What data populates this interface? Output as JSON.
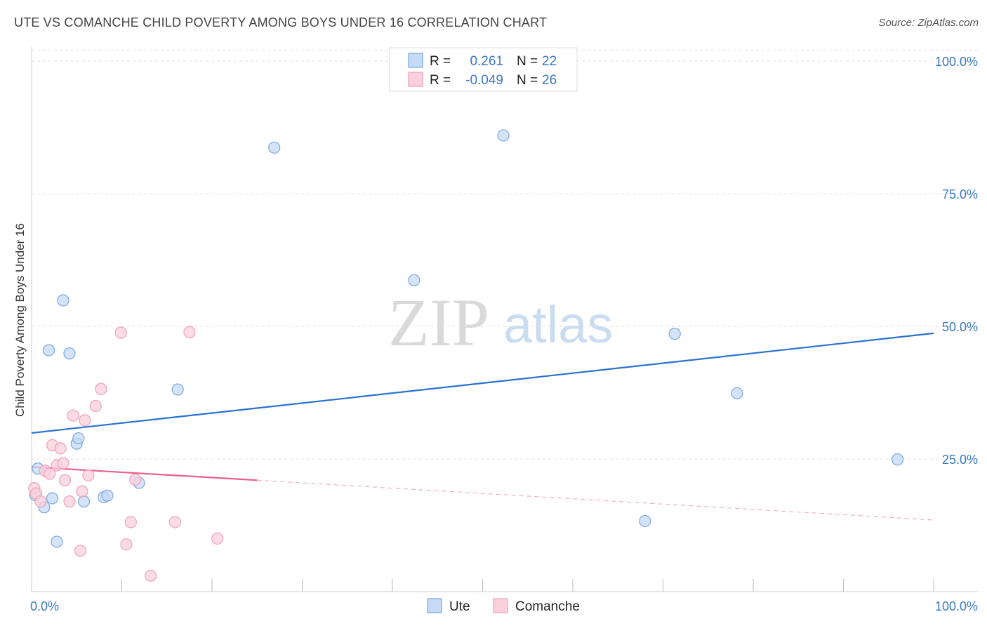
{
  "header": {
    "title": "UTE VS COMANCHE CHILD POVERTY AMONG BOYS UNDER 16 CORRELATION CHART",
    "source": "Source: ZipAtlas.com"
  },
  "watermark": {
    "zip": "ZIP",
    "atlas": "atlas"
  },
  "chart_data": {
    "type": "scatter",
    "title": "UTE VS COMANCHE CHILD POVERTY AMONG BOYS UNDER 16 CORRELATION CHART",
    "xlabel": "",
    "ylabel": "Child Poverty Among Boys Under 16",
    "xlim": [
      0,
      100
    ],
    "ylim": [
      0,
      102
    ],
    "x_tick_labels": [
      "0.0%",
      "100.0%"
    ],
    "y_ticks": [
      25,
      50,
      75,
      100
    ],
    "y_tick_labels": [
      "25.0%",
      "50.0%",
      "75.0%",
      "100.0%"
    ],
    "grid": true,
    "legend": {
      "placement": "top-center",
      "rows": [
        {
          "r_label": "R =",
          "r_value": "0.261",
          "n_label": "N =",
          "n_value": "22"
        },
        {
          "r_label": "R =",
          "r_value": "-0.049",
          "n_label": "N =",
          "n_value": "26"
        }
      ]
    },
    "series": [
      {
        "name": "Ute",
        "color": "#7aa8e0",
        "fill": "#c5daf5",
        "line_color": "#2a72d0",
        "trend": {
          "x0": 0,
          "y0": 29.9,
          "x1": 100,
          "y1": 48.7,
          "solid_to": 100
        },
        "points": [
          [
            0.4,
            18.2
          ],
          [
            0.7,
            23.2
          ],
          [
            1.4,
            15.9
          ],
          [
            1.9,
            45.5
          ],
          [
            2.3,
            17.6
          ],
          [
            2.8,
            9.4
          ],
          [
            3.5,
            54.9
          ],
          [
            4.2,
            44.9
          ],
          [
            5.0,
            27.9
          ],
          [
            5.2,
            28.9
          ],
          [
            5.8,
            17.0
          ],
          [
            8.0,
            17.8
          ],
          [
            8.4,
            18.1
          ],
          [
            11.9,
            20.5
          ],
          [
            16.2,
            38.1
          ],
          [
            26.9,
            83.7
          ],
          [
            42.4,
            58.7
          ],
          [
            52.3,
            86.0
          ],
          [
            68.0,
            13.3
          ],
          [
            71.3,
            48.6
          ],
          [
            78.2,
            37.4
          ],
          [
            96.0,
            24.9
          ]
        ]
      },
      {
        "name": "Comanche",
        "color": "#f0a0b8",
        "fill": "#f9d0dc",
        "line_color": "#e8608a",
        "trend": {
          "x0": 0,
          "y0": 23.5,
          "x1": 100,
          "y1": 13.5,
          "solid_to": 25
        },
        "points": [
          [
            0.3,
            19.5
          ],
          [
            0.5,
            18.5
          ],
          [
            1.0,
            17.0
          ],
          [
            1.5,
            22.8
          ],
          [
            2.0,
            22.2
          ],
          [
            2.3,
            27.6
          ],
          [
            2.8,
            23.8
          ],
          [
            3.2,
            27.0
          ],
          [
            3.5,
            24.2
          ],
          [
            3.7,
            21.0
          ],
          [
            4.2,
            17.0
          ],
          [
            4.6,
            33.2
          ],
          [
            5.4,
            7.7
          ],
          [
            5.6,
            18.9
          ],
          [
            5.9,
            32.3
          ],
          [
            6.3,
            21.9
          ],
          [
            7.1,
            35.0
          ],
          [
            7.7,
            38.2
          ],
          [
            9.9,
            48.8
          ],
          [
            10.5,
            8.9
          ],
          [
            11.0,
            13.1
          ],
          [
            11.5,
            21.1
          ],
          [
            13.2,
            3.0
          ],
          [
            15.9,
            13.1
          ],
          [
            17.5,
            48.9
          ],
          [
            20.6,
            10.0
          ]
        ]
      }
    ]
  }
}
